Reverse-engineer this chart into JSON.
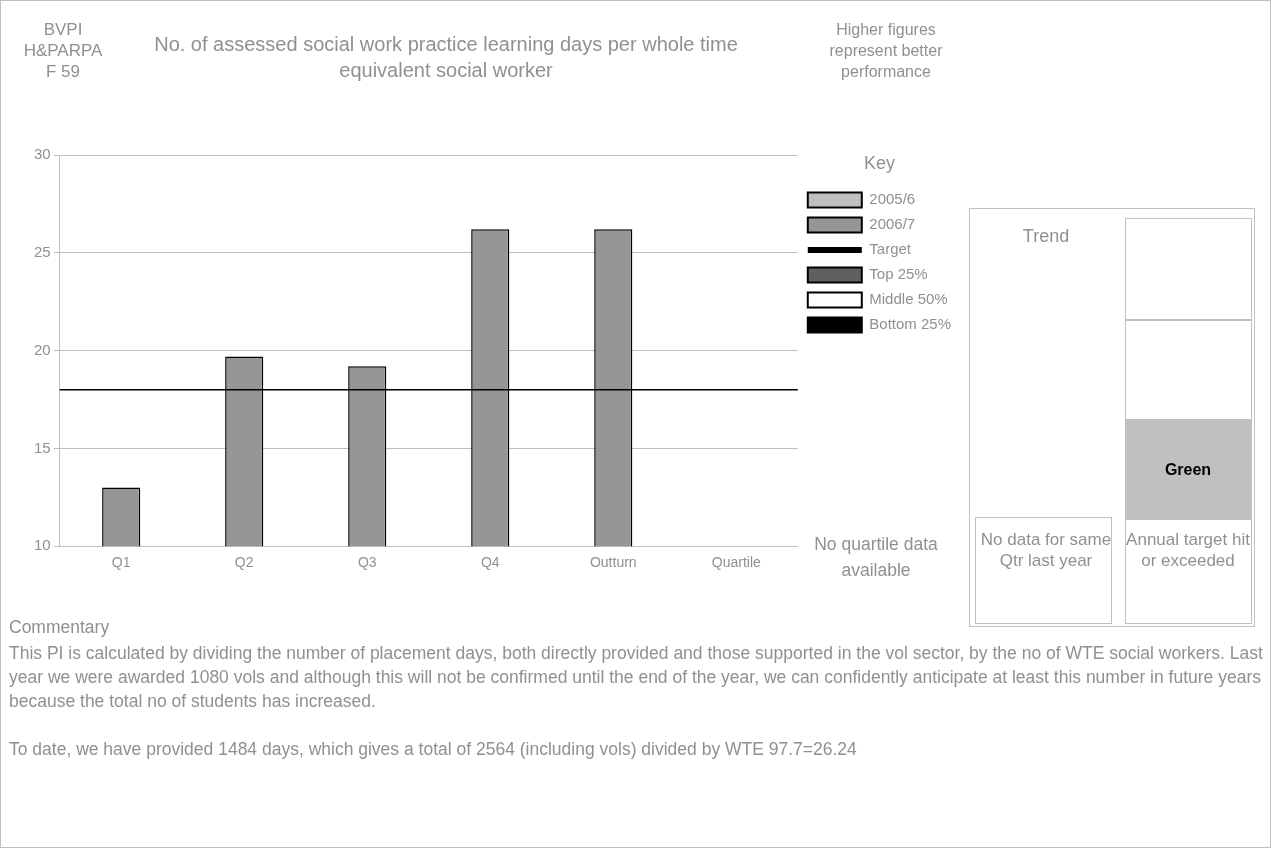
{
  "chart_data": {
    "type": "bar",
    "title": "No. of assessed social work practice learning days per whole time equivalent social worker",
    "legend_title": "Key",
    "categories": [
      "Q1",
      "Q2",
      "Q3",
      "Q4",
      "Outturn",
      "Quartile"
    ],
    "series": [
      {
        "name": "2005/6",
        "color": "#c0c0c0",
        "values": [
          null,
          null,
          null,
          null,
          null,
          null
        ]
      },
      {
        "name": "2006/7",
        "color": "#969696",
        "values": [
          13.0,
          19.7,
          19.2,
          26.2,
          26.2,
          null
        ]
      },
      {
        "name": "Top 25%",
        "color": "#606060",
        "values": [
          null,
          null,
          null,
          null,
          null,
          null
        ]
      },
      {
        "name": "Middle 50%",
        "color": "#ffffff",
        "values": [
          null,
          null,
          null,
          null,
          null,
          null
        ]
      },
      {
        "name": "Bottom 25%",
        "color": "#000000",
        "values": [
          null,
          null,
          null,
          null,
          null,
          null
        ]
      }
    ],
    "ylim": [
      10,
      30
    ],
    "yticks": [
      10,
      15,
      20,
      25,
      30
    ],
    "grid": "y",
    "legend": "right",
    "ref_lines": [
      {
        "axis": "y",
        "value": 18,
        "label": "Target",
        "color": "#000000",
        "line_style": "solid"
      }
    ],
    "annotations": [
      "BVPI H&PARPA F 59",
      "Higher figures represent better performance",
      "No quartile data available",
      "Trend",
      "Green",
      "No data for same Qtr last year",
      "Annual target hit or exceeded",
      "Commentary",
      "This PI is calculated by dividing the number of placement days, both directly provided and those supported in the vol sector, by the no of WTE social workers. Last year we were awarded 1080 vols and although this will not be confirmed until the end of the year, we can confidently anticipate at least this number in future years because the total no of students has increased.",
      "To date, we have provided 1484 days, which gives a total of 2564 (including vols) divided by WTE 97.7=26.24"
    ]
  }
}
